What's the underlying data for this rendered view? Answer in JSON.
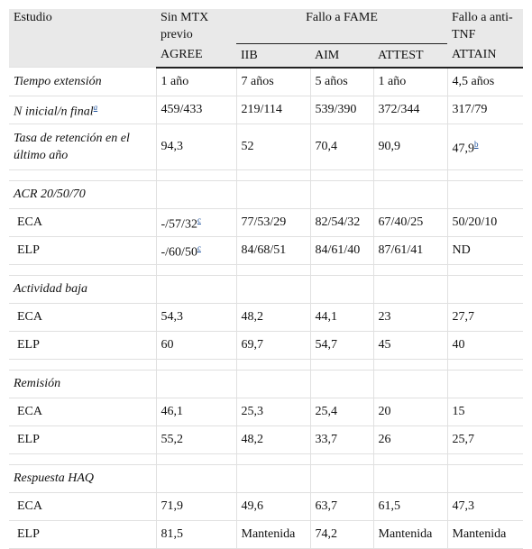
{
  "table": {
    "header": {
      "estudio": "Estudio",
      "sin_mtx": "Sin MTX previo",
      "fallo_fame": "Fallo a FAME",
      "fallo_anti_tnf": "Fallo a anti-TNF",
      "studies": [
        "AGREE",
        "IIB",
        "AIM",
        "ATTEST",
        "ATTAIN"
      ]
    },
    "sections": [
      {
        "rows": [
          {
            "label": "Tiempo extensión",
            "values": [
              "1 año",
              "7 años",
              "5 años",
              "1 año",
              "4,5 años"
            ]
          },
          {
            "label": "N inicial/n final",
            "note": "a",
            "values": [
              "459/433",
              "219/114",
              "539/390",
              "372/344",
              "317/79"
            ]
          },
          {
            "label": "Tasa de retención en el último año",
            "values": [
              "94,3",
              "52",
              "70,4",
              "90,9",
              {
                "text": "47,9",
                "note": "b"
              }
            ]
          }
        ]
      },
      {
        "heading": "ACR 20/50/70",
        "rows": [
          {
            "label": "ECA",
            "values": [
              {
                "text": "-/57/32",
                "note": "c"
              },
              "77/53/29",
              "82/54/32",
              "67/40/25",
              "50/20/10"
            ]
          },
          {
            "label": "ELP",
            "values": [
              {
                "text": "-/60/50",
                "note": "c"
              },
              "84/68/51",
              "84/61/40",
              "87/61/41",
              "ND"
            ]
          }
        ]
      },
      {
        "heading": "Actividad baja",
        "rows": [
          {
            "label": "ECA",
            "values": [
              "54,3",
              "48,2",
              "44,1",
              "23",
              "27,7"
            ]
          },
          {
            "label": "ELP",
            "values": [
              "60",
              "69,7",
              "54,7",
              "45",
              "40"
            ]
          }
        ]
      },
      {
        "heading": "Remisión",
        "rows": [
          {
            "label": "ECA",
            "values": [
              "46,1",
              "25,3",
              "25,4",
              "20",
              "15"
            ]
          },
          {
            "label": "ELP",
            "values": [
              "55,2",
              "48,2",
              "33,7",
              "26",
              "25,7"
            ]
          }
        ]
      },
      {
        "heading": "Respuesta HAQ",
        "rows": [
          {
            "label": "ECA",
            "values": [
              "71,9",
              "49,6",
              "63,7",
              "61,5",
              "47,3"
            ]
          },
          {
            "label": "ELP",
            "values": [
              "81,5",
              "Mantenida",
              "74,2",
              "Mantenida",
              "Mantenida"
            ]
          }
        ]
      }
    ]
  }
}
